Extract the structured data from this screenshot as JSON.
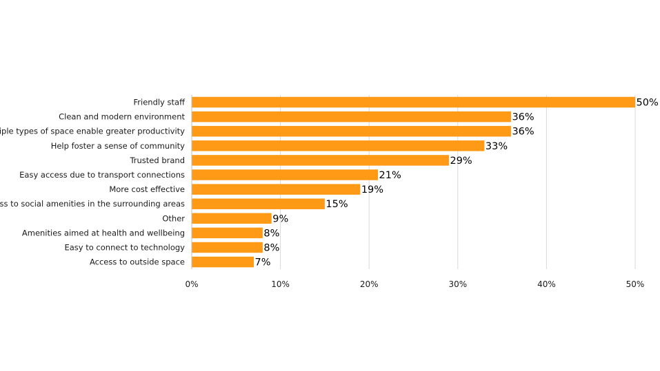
{
  "chart_data": {
    "type": "bar",
    "orientation": "horizontal",
    "title": "",
    "xlabel": "",
    "ylabel": "",
    "xlim": [
      0,
      50
    ],
    "grid": "vertical",
    "bar_color": "#FF9A17",
    "grid_color": "#D9D9D9",
    "categories": [
      "Friendly staff",
      "Clean and modern environment",
      "Multiple types of space enable greater productivity",
      "Help foster a sense of community",
      "Trusted brand",
      "Easy access due to transport connections",
      "More cost effective",
      "Access to social amenities in the surrounding areas",
      "Other",
      "Amenities aimed at health and wellbeing",
      "Easy to connect to technology",
      "Access to outside space"
    ],
    "values": [
      50,
      36,
      36,
      33,
      29,
      21,
      19,
      15,
      9,
      8,
      8,
      7
    ],
    "data_labels": [
      "50%",
      "36%",
      "36%",
      "33%",
      "29%",
      "21%",
      "19%",
      "15%",
      "9%",
      "8%",
      "8%",
      "7%"
    ],
    "ticks": [
      0,
      10,
      20,
      30,
      40,
      50
    ],
    "tick_labels": [
      "0%",
      "10%",
      "20%",
      "30%",
      "40%",
      "50%"
    ]
  }
}
